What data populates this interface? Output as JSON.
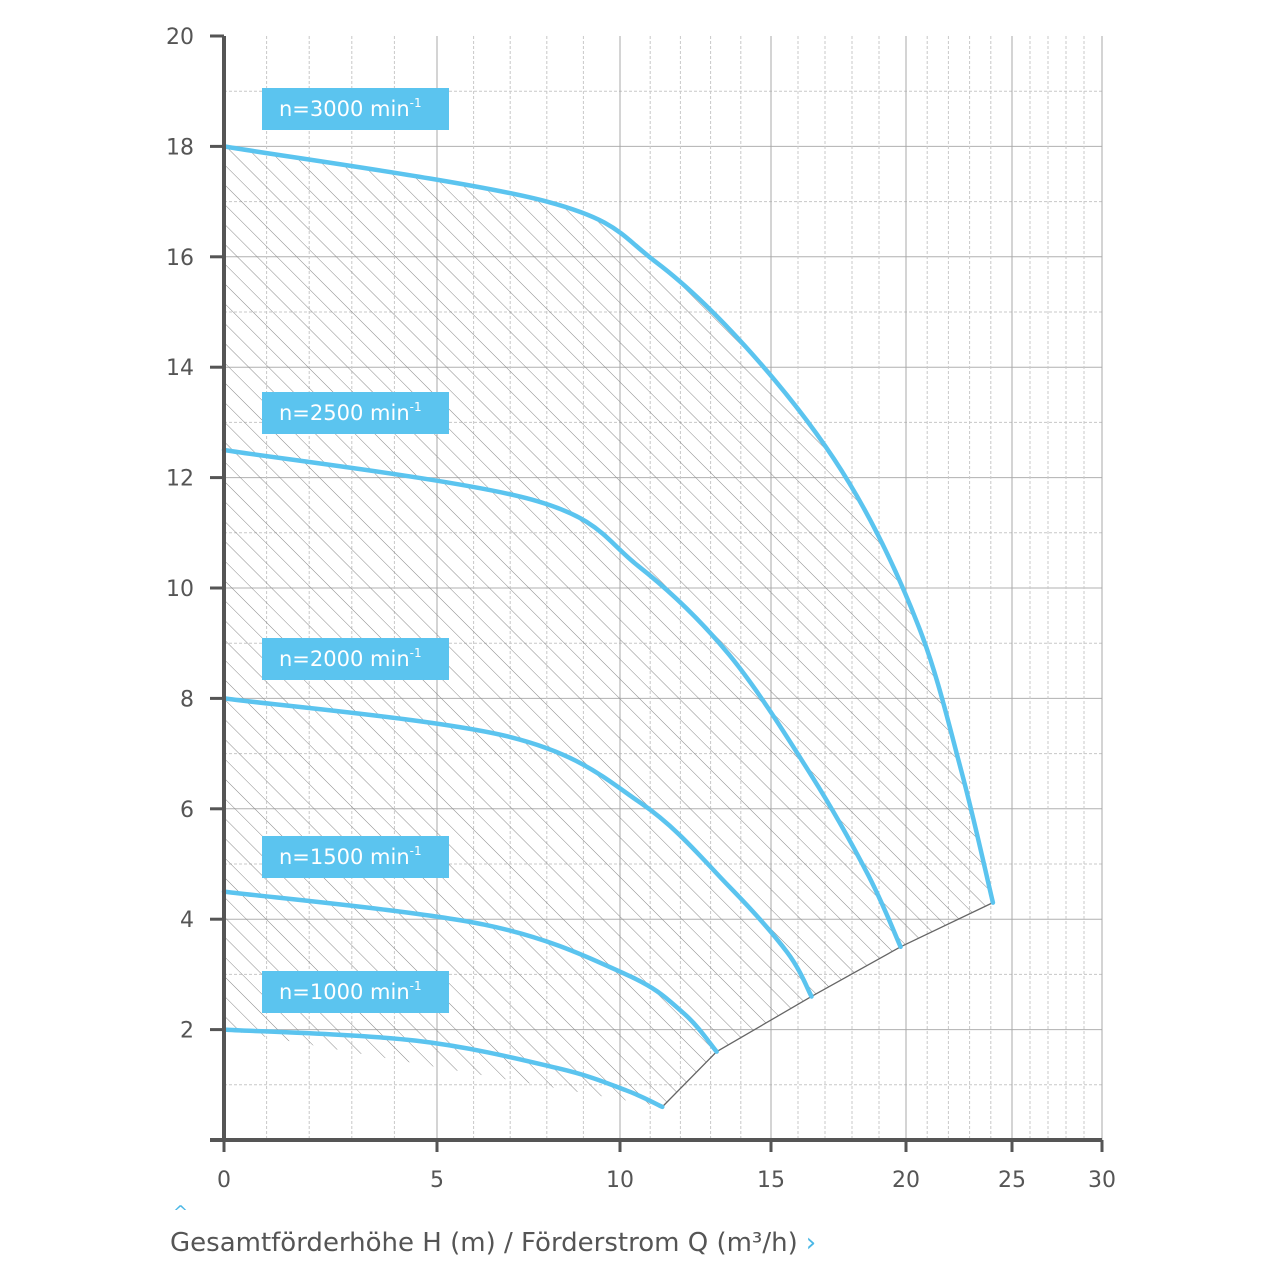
{
  "chart_data": {
    "type": "line",
    "x_ticks": [
      "0",
      "5",
      "10",
      "15",
      "20",
      "25",
      "30"
    ],
    "y_ticks": [
      "2",
      "4",
      "6",
      "8",
      "10",
      "12",
      "14",
      "16",
      "18",
      "20"
    ],
    "ylim": [
      0,
      20
    ],
    "grid": true,
    "series": [
      {
        "name": "n=3000 min⁻¹",
        "label_main": "n=3000 min",
        "label_sup": "-1",
        "points": [
          [
            0,
            18.0
          ],
          [
            8,
            17.0
          ],
          [
            11.2,
            15.9
          ],
          [
            14.6,
            14.1
          ],
          [
            17.9,
            11.9
          ],
          [
            20.6,
            9.3
          ],
          [
            22.6,
            6.7
          ],
          [
            24.1,
            4.3
          ]
        ]
      },
      {
        "name": "n=2500 min⁻¹",
        "label_main": "n=2500 min",
        "label_sup": "-1",
        "points": [
          [
            0,
            12.5
          ],
          [
            7.6,
            11.6
          ],
          [
            10.6,
            10.4
          ],
          [
            13.6,
            8.8
          ],
          [
            16.5,
            6.6
          ],
          [
            18.6,
            4.8
          ],
          [
            19.8,
            3.5
          ]
        ]
      },
      {
        "name": "n=2000 min⁻¹",
        "label_main": "n=2000 min",
        "label_sup": "-1",
        "points": [
          [
            0,
            8.0
          ],
          [
            7.0,
            7.3
          ],
          [
            10.7,
            6.1
          ],
          [
            13.6,
            4.6
          ],
          [
            15.6,
            3.4
          ],
          [
            16.5,
            2.6
          ]
        ]
      },
      {
        "name": "n=1500 min⁻¹",
        "label_main": "n=1500 min",
        "label_sup": "-1",
        "points": [
          [
            0,
            4.5
          ],
          [
            6.3,
            3.9
          ],
          [
            10.2,
            3.0
          ],
          [
            12.1,
            2.3
          ],
          [
            13.2,
            1.6
          ]
        ]
      },
      {
        "name": "n=1000 min⁻¹",
        "label_main": "n=1000 min",
        "label_sup": "-1",
        "points": [
          [
            0,
            2.0
          ],
          [
            4.5,
            1.8
          ],
          [
            8.3,
            1.3
          ],
          [
            10.2,
            0.9
          ],
          [
            11.4,
            0.6
          ]
        ]
      }
    ],
    "boundary_line": [
      [
        11.4,
        0.6
      ],
      [
        13.2,
        1.6
      ],
      [
        16.5,
        2.6
      ],
      [
        19.8,
        3.5
      ],
      [
        24.1,
        4.3
      ]
    ],
    "xlabel": "Gesamtförderhöhe H (m) / Förderstrom Q (m³/h)",
    "colors": {
      "curve": "#5bc4ef",
      "label_bg": "#5bc4ef",
      "axis": "#555555",
      "grid": "#b5b5b5",
      "hatch": "#8a8a8a"
    }
  }
}
